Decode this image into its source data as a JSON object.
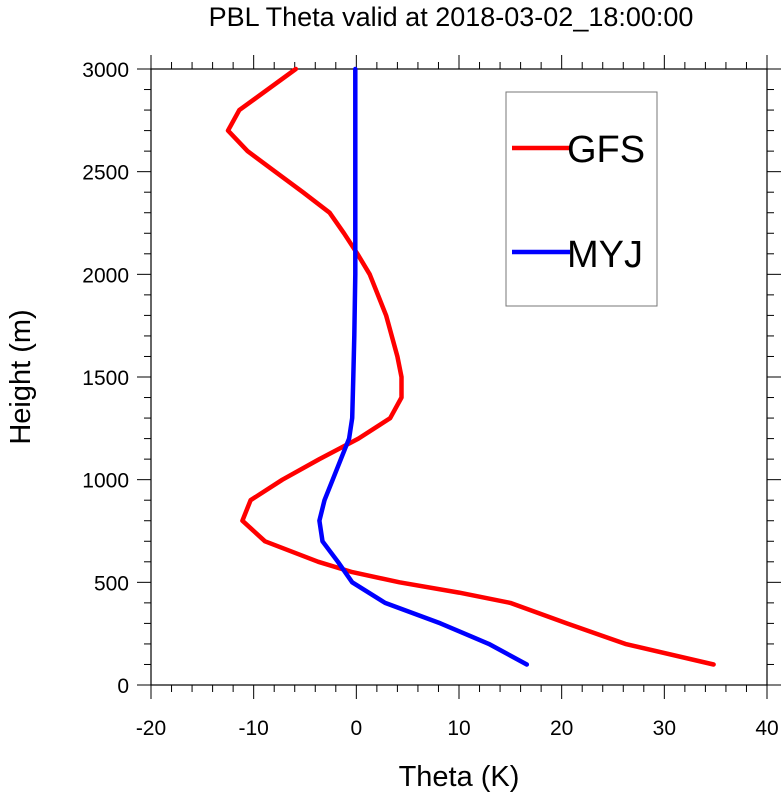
{
  "chart_data": {
    "type": "line",
    "title": "PBL Theta valid at 2018-03-02_18:00:00",
    "xlabel": "Theta (K)",
    "ylabel": "Height (m)",
    "xlim": [
      -20,
      40
    ],
    "ylim": [
      0,
      3000
    ],
    "xticks": [
      -20,
      -10,
      0,
      10,
      20,
      30,
      40
    ],
    "yticks": [
      0,
      500,
      1000,
      1500,
      2000,
      2500,
      3000
    ],
    "legend_position": "top-right",
    "grid": false,
    "series": [
      {
        "name": "GFS",
        "color": "#ff0000",
        "points": [
          [
            34.8,
            100
          ],
          [
            26.2,
            200
          ],
          [
            20.5,
            300
          ],
          [
            15.0,
            400
          ],
          [
            10.0,
            450
          ],
          [
            4.2,
            500
          ],
          [
            -0.4,
            550
          ],
          [
            -3.7,
            600
          ],
          [
            -8.9,
            700
          ],
          [
            -11.1,
            800
          ],
          [
            -10.3,
            900
          ],
          [
            -7.2,
            1000
          ],
          [
            -3.6,
            1100
          ],
          [
            0.2,
            1200
          ],
          [
            3.3,
            1300
          ],
          [
            4.4,
            1400
          ],
          [
            4.4,
            1500
          ],
          [
            4.0,
            1600
          ],
          [
            2.9,
            1800
          ],
          [
            1.3,
            2000
          ],
          [
            0.1,
            2100
          ],
          [
            -1.2,
            2200
          ],
          [
            -2.6,
            2300
          ],
          [
            -5.2,
            2400
          ],
          [
            -7.9,
            2500
          ],
          [
            -10.6,
            2600
          ],
          [
            -12.5,
            2700
          ],
          [
            -11.4,
            2800
          ],
          [
            -5.9,
            3000
          ]
        ]
      },
      {
        "name": "MYJ",
        "color": "#0000ff",
        "points": [
          [
            16.6,
            100
          ],
          [
            12.9,
            200
          ],
          [
            8.2,
            300
          ],
          [
            2.8,
            400
          ],
          [
            -0.4,
            500
          ],
          [
            -1.8,
            600
          ],
          [
            -3.3,
            700
          ],
          [
            -3.6,
            800
          ],
          [
            -3.1,
            900
          ],
          [
            -2.3,
            1000
          ],
          [
            -1.5,
            1100
          ],
          [
            -0.7,
            1200
          ],
          [
            -0.4,
            1300
          ],
          [
            -0.3,
            1500
          ],
          [
            -0.2,
            1700
          ],
          [
            -0.1,
            2000
          ],
          [
            -0.1,
            2500
          ],
          [
            -0.1,
            3000
          ]
        ]
      }
    ]
  }
}
